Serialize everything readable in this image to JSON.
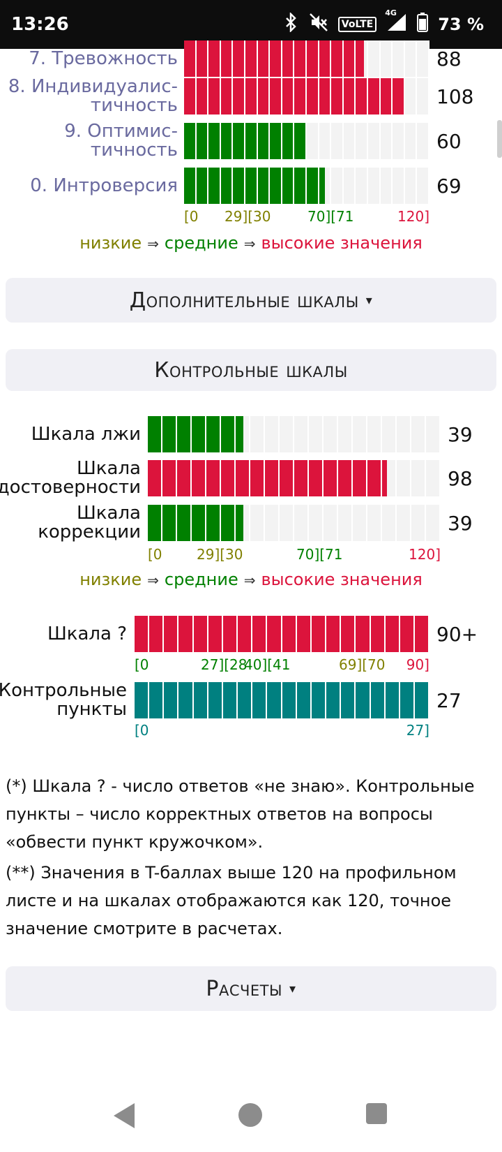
{
  "status_bar": {
    "time": "13:26",
    "volte": "VoLTE",
    "network": "4G",
    "battery": "73 %",
    "icons": [
      "bluetooth-icon",
      "mute-icon",
      "volte-icon",
      "signal-icon",
      "battery-icon"
    ]
  },
  "colors": {
    "red": "#dc143c",
    "green": "#008000",
    "teal": "#008080",
    "olive": "#808000",
    "label_blue": "#6a6a9f",
    "track": "#f3f3f3"
  },
  "main_scales": {
    "rows": [
      {
        "label": "7. Тревожность",
        "value_text": "88",
        "value": 88,
        "color": "red"
      },
      {
        "label": "8. Индивидуалис-тичность",
        "line1": "8. Индивидуалис-",
        "line2": "тичность",
        "value_text": "108",
        "value": 108,
        "color": "red"
      },
      {
        "label": "9. Оптимис-тичность",
        "line1": "9. Оптимис-",
        "line2": "тичность",
        "value_text": "60",
        "value": 60,
        "color": "green"
      },
      {
        "label": "0. Интроверсия",
        "value_text": "69",
        "value": 69,
        "color": "green"
      }
    ],
    "max": 120,
    "ticks": [
      "[0",
      "29][30",
      "70][71",
      "120]"
    ],
    "legend": {
      "low": "низкие",
      "mid": "средние",
      "high": "высокие значения",
      "arrow": "⇒"
    }
  },
  "panels": {
    "additional": "Дополнительные шкалы",
    "additional_caret": "▾",
    "control": "Контрольные шкалы",
    "calculations": "Расчеты",
    "calculations_caret": "▾"
  },
  "control_scales": {
    "rows": [
      {
        "label": "Шкала лжи",
        "value_text": "39",
        "value": 39,
        "color": "green"
      },
      {
        "line1": "Шкала",
        "line2": "достоверности",
        "value_text": "98",
        "value": 98,
        "color": "red"
      },
      {
        "line1": "Шкала",
        "line2": "коррекции",
        "value_text": "39",
        "value": 39,
        "color": "green"
      }
    ],
    "max": 120,
    "ticks": [
      "[0",
      "29][30",
      "70][71",
      "120]"
    ],
    "legend": {
      "low": "низкие",
      "mid": "средние",
      "high": "высокие значения",
      "arrow": "⇒"
    }
  },
  "question_scale": {
    "label": "Шкала ?",
    "value_text": "90+",
    "value": 90,
    "max": 90,
    "color": "red",
    "ticks": [
      "[0",
      "27][28",
      "40][41",
      "69][70",
      "90]"
    ]
  },
  "control_points": {
    "line1": "Контрольные",
    "line2": "пункты",
    "value_text": "27",
    "value": 27,
    "max": 27,
    "color": "teal",
    "ticks": [
      "[0",
      "27]"
    ]
  },
  "notes": {
    "note1": "(*) Шкала ? - число ответов «не знаю». Контрольные пункты – число корректных ответов на вопросы «обвести пункт кружочком».",
    "note2": "(**) Значения в T-баллах выше 120 на профильном листе и на шкалах отображаются как 120, точное значение смотрите в расчетах."
  },
  "nav": {
    "back": "back-icon",
    "home": "home-icon",
    "recent": "recent-apps-icon"
  }
}
